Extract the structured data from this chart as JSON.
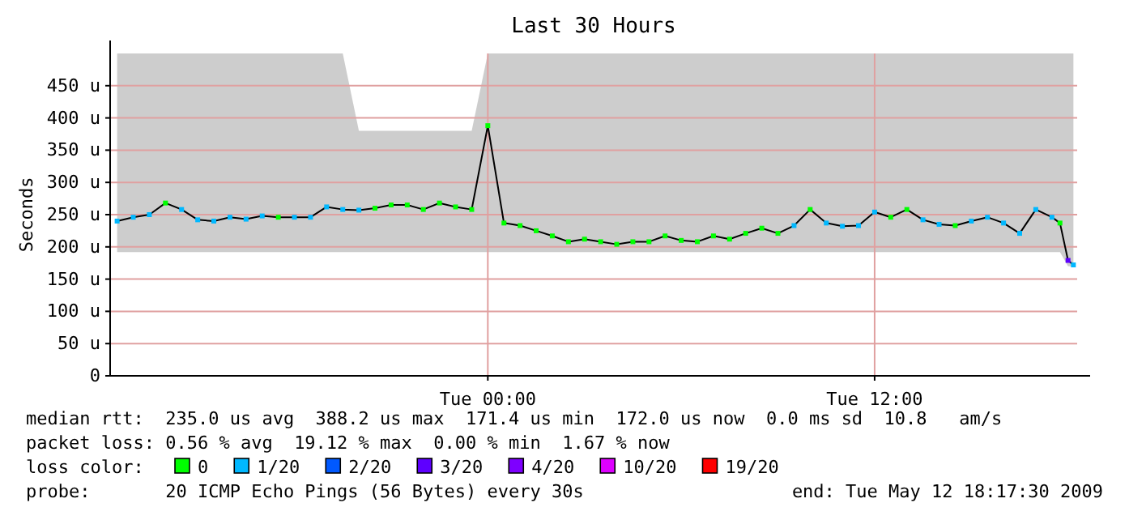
{
  "chart_data": {
    "type": "line",
    "title": "Last 30 Hours",
    "ylabel": "Seconds",
    "xlim": [
      "2009-05-11T12:17",
      "2009-05-12T18:17"
    ],
    "xticks": [
      {
        "value": "2009-05-12T00:00",
        "label": "Tue 00:00"
      },
      {
        "value": "2009-05-12T12:00",
        "label": "Tue 12:00"
      }
    ],
    "ylim": [
      0,
      500
    ],
    "yticks": [
      {
        "value": 0,
        "label": "0"
      },
      {
        "value": 50,
        "label": "50 u"
      },
      {
        "value": 100,
        "label": "100 u"
      },
      {
        "value": 150,
        "label": "150 u"
      },
      {
        "value": 200,
        "label": "200 u"
      },
      {
        "value": 250,
        "label": "250 u"
      },
      {
        "value": 300,
        "label": "300 u"
      },
      {
        "value": 350,
        "label": "350 u"
      },
      {
        "value": 400,
        "label": "400 u"
      },
      {
        "value": 450,
        "label": "450 u"
      }
    ],
    "grid": true,
    "marker": "square",
    "legend": "bottom",
    "legend_title": "loss color:",
    "x": [
      "2009-05-11T12:30",
      "2009-05-11T13:00",
      "2009-05-11T13:30",
      "2009-05-11T14:00",
      "2009-05-11T14:30",
      "2009-05-11T15:00",
      "2009-05-11T15:30",
      "2009-05-11T16:00",
      "2009-05-11T16:30",
      "2009-05-11T17:00",
      "2009-05-11T17:30",
      "2009-05-11T18:00",
      "2009-05-11T18:30",
      "2009-05-11T19:00",
      "2009-05-11T19:30",
      "2009-05-11T20:00",
      "2009-05-11T20:30",
      "2009-05-11T21:00",
      "2009-05-11T21:30",
      "2009-05-11T22:00",
      "2009-05-11T22:30",
      "2009-05-11T23:00",
      "2009-05-11T23:30",
      "2009-05-12T00:00",
      "2009-05-12T00:30",
      "2009-05-12T01:00",
      "2009-05-12T01:30",
      "2009-05-12T02:00",
      "2009-05-12T02:30",
      "2009-05-12T03:00",
      "2009-05-12T03:30",
      "2009-05-12T04:00",
      "2009-05-12T04:30",
      "2009-05-12T05:00",
      "2009-05-12T05:30",
      "2009-05-12T06:00",
      "2009-05-12T06:30",
      "2009-05-12T07:00",
      "2009-05-12T07:30",
      "2009-05-12T08:00",
      "2009-05-12T08:30",
      "2009-05-12T09:00",
      "2009-05-12T09:30",
      "2009-05-12T10:00",
      "2009-05-12T10:30",
      "2009-05-12T11:00",
      "2009-05-12T11:30",
      "2009-05-12T12:00",
      "2009-05-12T12:30",
      "2009-05-12T13:00",
      "2009-05-12T13:30",
      "2009-05-12T14:00",
      "2009-05-12T14:30",
      "2009-05-12T15:00",
      "2009-05-12T15:30",
      "2009-05-12T16:00",
      "2009-05-12T16:30",
      "2009-05-12T17:00",
      "2009-05-12T17:30",
      "2009-05-12T17:45",
      "2009-05-12T18:00",
      "2009-05-12T18:10"
    ],
    "series": [
      {
        "color": "#000000",
        "marker": "none",
        "values": [
          240,
          246,
          250,
          268,
          258,
          242,
          240,
          246,
          243,
          248,
          246,
          246,
          246,
          262,
          258,
          257,
          260,
          265,
          265,
          258,
          268,
          262,
          258,
          388,
          237,
          233,
          225,
          217,
          208,
          212,
          208,
          204,
          208,
          208,
          217,
          210,
          208,
          217,
          212,
          221,
          229,
          221,
          233,
          258,
          237,
          232,
          233,
          254,
          246,
          258,
          242,
          235,
          233,
          240,
          246,
          237,
          221,
          258,
          246,
          237,
          179,
          172
        ],
        "lower": [
          192,
          192,
          192,
          192,
          192,
          192,
          192,
          192,
          192,
          192,
          192,
          192,
          192,
          192,
          192,
          192,
          192,
          192,
          192,
          192,
          192,
          192,
          192,
          192,
          192,
          192,
          192,
          192,
          192,
          192,
          192,
          192,
          192,
          192,
          192,
          192,
          192,
          192,
          192,
          192,
          192,
          192,
          192,
          192,
          192,
          192,
          192,
          192,
          192,
          192,
          192,
          192,
          192,
          192,
          192,
          192,
          192,
          192,
          192,
          192,
          170,
          170
        ],
        "upper": [
          500,
          500,
          500,
          500,
          500,
          500,
          500,
          500,
          500,
          500,
          500,
          500,
          500,
          500,
          500,
          380,
          380,
          380,
          380,
          380,
          380,
          380,
          380,
          500,
          500,
          500,
          500,
          500,
          500,
          500,
          500,
          500,
          500,
          500,
          500,
          500,
          500,
          500,
          500,
          500,
          500,
          500,
          500,
          500,
          500,
          500,
          500,
          500,
          500,
          500,
          500,
          500,
          500,
          500,
          500,
          500,
          500,
          500,
          500,
          500,
          500,
          500
        ]
      },
      {
        "type": "scatter",
        "name": "0",
        "color": "#00ff00",
        "x": [
          "2009-05-11T14:00",
          "2009-05-11T17:30",
          "2009-05-11T20:30",
          "2009-05-11T21:00",
          "2009-05-11T21:30",
          "2009-05-11T22:00",
          "2009-05-11T22:30",
          "2009-05-11T23:00",
          "2009-05-11T23:30",
          "2009-05-12T00:00",
          "2009-05-12T00:30",
          "2009-05-12T01:00",
          "2009-05-12T01:30",
          "2009-05-12T02:00",
          "2009-05-12T02:30",
          "2009-05-12T03:00",
          "2009-05-12T03:30",
          "2009-05-12T04:00",
          "2009-05-12T04:30",
          "2009-05-12T05:00",
          "2009-05-12T05:30",
          "2009-05-12T06:00",
          "2009-05-12T06:30",
          "2009-05-12T07:00",
          "2009-05-12T07:30",
          "2009-05-12T08:00",
          "2009-05-12T08:30",
          "2009-05-12T09:00",
          "2009-05-12T10:00",
          "2009-05-12T12:30",
          "2009-05-12T13:00",
          "2009-05-12T14:30",
          "2009-05-12T17:45"
        ],
        "values": [
          268,
          246,
          260,
          265,
          265,
          258,
          268,
          262,
          258,
          388,
          237,
          233,
          225,
          217,
          208,
          212,
          208,
          204,
          208,
          208,
          217,
          210,
          208,
          217,
          212,
          221,
          229,
          221,
          258,
          246,
          258,
          233,
          237
        ]
      },
      {
        "type": "scatter",
        "name": "1/20",
        "color": "#00b8ff",
        "x": [
          "2009-05-11T12:30",
          "2009-05-11T13:00",
          "2009-05-11T13:30",
          "2009-05-11T14:30",
          "2009-05-11T15:00",
          "2009-05-11T15:30",
          "2009-05-11T16:00",
          "2009-05-11T16:30",
          "2009-05-11T17:00",
          "2009-05-11T18:00",
          "2009-05-11T18:30",
          "2009-05-11T19:00",
          "2009-05-11T19:30",
          "2009-05-11T20:00",
          "2009-05-12T09:30",
          "2009-05-12T10:30",
          "2009-05-12T11:00",
          "2009-05-12T11:30",
          "2009-05-12T12:00",
          "2009-05-12T13:30",
          "2009-05-12T14:00",
          "2009-05-12T15:00",
          "2009-05-12T15:30",
          "2009-05-12T16:00",
          "2009-05-12T16:30",
          "2009-05-12T17:00",
          "2009-05-12T17:30",
          "2009-05-12T18:10"
        ],
        "values": [
          240,
          246,
          250,
          258,
          242,
          240,
          246,
          243,
          248,
          246,
          246,
          262,
          258,
          257,
          233,
          237,
          232,
          233,
          254,
          242,
          235,
          240,
          246,
          237,
          221,
          258,
          246,
          172
        ]
      },
      {
        "type": "scatter",
        "name": "2/20",
        "color": "#0059ff",
        "values": [
          null,
          null,
          null,
          null,
          null,
          null,
          null,
          null,
          null,
          null,
          null,
          null,
          null,
          null,
          null,
          null,
          null,
          null,
          null,
          null,
          null,
          null,
          null,
          null,
          null,
          null,
          null,
          null,
          null,
          null,
          null,
          null,
          null,
          null,
          null,
          null,
          null,
          null,
          null,
          null,
          null,
          null,
          null,
          null,
          null,
          null,
          null,
          null,
          null,
          null,
          null,
          null,
          null,
          null,
          null,
          null,
          null,
          null,
          null,
          null,
          null,
          null
        ]
      },
      {
        "type": "scatter",
        "name": "3/20",
        "color": "#5e00ff",
        "x": [
          "2009-05-12T18:00"
        ],
        "values": [
          179
        ]
      },
      {
        "type": "scatter",
        "name": "4/20",
        "color": "#7e00ff",
        "values": [
          null,
          null,
          null,
          null,
          null,
          null,
          null,
          null,
          null,
          null,
          null,
          null,
          null,
          null,
          null,
          null,
          null,
          null,
          null,
          null,
          null,
          null,
          null,
          null,
          null,
          null,
          null,
          null,
          null,
          null,
          null,
          null,
          null,
          null,
          null,
          null,
          null,
          null,
          null,
          null,
          null,
          null,
          null,
          null,
          null,
          null,
          null,
          null,
          null,
          null,
          null,
          null,
          null,
          null,
          null,
          null,
          null,
          null,
          null,
          null,
          null,
          null
        ]
      },
      {
        "type": "scatter",
        "name": "10/20",
        "color": "#dd00ff",
        "values": [
          null,
          null,
          null,
          null,
          null,
          null,
          null,
          null,
          null,
          null,
          null,
          null,
          null,
          null,
          null,
          null,
          null,
          null,
          null,
          null,
          null,
          null,
          null,
          null,
          null,
          null,
          null,
          null,
          null,
          null,
          null,
          null,
          null,
          null,
          null,
          null,
          null,
          null,
          null,
          null,
          null,
          null,
          null,
          null,
          null,
          null,
          null,
          null,
          null,
          null,
          null,
          null,
          null,
          null,
          null,
          null,
          null,
          null,
          null,
          null,
          null,
          null
        ]
      },
      {
        "type": "scatter",
        "name": "19/20",
        "color": "#ff0000",
        "values": [
          null,
          null,
          null,
          null,
          null,
          null,
          null,
          null,
          null,
          null,
          null,
          null,
          null,
          null,
          null,
          null,
          null,
          null,
          null,
          null,
          null,
          null,
          null,
          null,
          null,
          null,
          null,
          null,
          null,
          null,
          null,
          null,
          null,
          null,
          null,
          null,
          null,
          null,
          null,
          null,
          null,
          null,
          null,
          null,
          null,
          null,
          null,
          null,
          null,
          null,
          null,
          null,
          null,
          null,
          null,
          null,
          null,
          null,
          null,
          null,
          null,
          null
        ]
      }
    ],
    "annotations": [
      "median rtt:  235.0 us avg  388.2 us max  171.4 us min  172.0 us now  0.0 ms sd  10.8   am/s",
      "packet loss: 0.56 % avg  19.12 % max  0.00 % min  1.67 % now",
      "probe:       20 ICMP Echo Pings (56 Bytes) every 30s",
      "end: Tue May 12 18:17:30 2009"
    ]
  }
}
